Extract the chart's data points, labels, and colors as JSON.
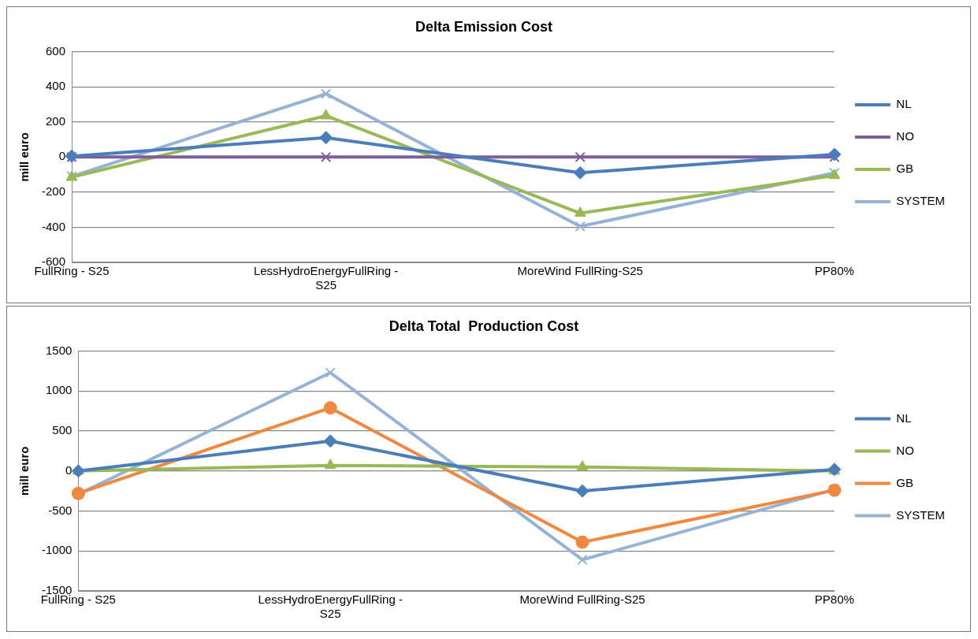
{
  "chart_data": [
    {
      "type": "line",
      "title": "Delta Emission Cost",
      "ylabel": "mill euro",
      "categories": [
        "FullRing - S25",
        "LessHydroEnergyFullRing - S25",
        "MoreWind FullRing-S25",
        "PP80%"
      ],
      "series": [
        {
          "name": "NL",
          "color": "#4a7ebb",
          "marker": "diamond",
          "values": [
            5,
            110,
            -90,
            15
          ]
        },
        {
          "name": "NO",
          "color": "#7d5fa0",
          "marker": "cross",
          "values": [
            0,
            0,
            0,
            0
          ]
        },
        {
          "name": "GB",
          "color": "#98b954",
          "marker": "triangle",
          "values": [
            -115,
            235,
            -320,
            -105
          ]
        },
        {
          "name": "SYSTEM",
          "color": "#95b3d7",
          "marker": "cross",
          "values": [
            -110,
            360,
            -395,
            -90
          ]
        }
      ],
      "ylim": [
        -600,
        600
      ],
      "yticks": [
        -600,
        -400,
        -200,
        0,
        200,
        400,
        600
      ],
      "grid": "y",
      "legend": "right"
    },
    {
      "type": "line",
      "title": "Delta Total  Production Cost",
      "ylabel": "mill euro",
      "categories": [
        "FullRing - S25",
        "LessHydroEnergyFullRing - S25",
        "MoreWind FullRing-S25",
        "PP80%"
      ],
      "series": [
        {
          "name": "NL",
          "color": "#4a7ebb",
          "marker": "diamond",
          "values": [
            0,
            375,
            -250,
            20
          ]
        },
        {
          "name": "NO",
          "color": "#98b954",
          "marker": "triangle",
          "values": [
            0,
            70,
            50,
            0
          ]
        },
        {
          "name": "GB",
          "color": "#f0883f",
          "marker": "circle",
          "values": [
            -280,
            790,
            -890,
            -240
          ]
        },
        {
          "name": "SYSTEM",
          "color": "#95b3d7",
          "marker": "cross",
          "values": [
            -290,
            1230,
            -1110,
            -230
          ]
        }
      ],
      "ylim": [
        -1500,
        1500
      ],
      "yticks": [
        -1500,
        -1000,
        -500,
        0,
        500,
        1000,
        1500
      ],
      "grid": "y",
      "legend": "right"
    }
  ]
}
